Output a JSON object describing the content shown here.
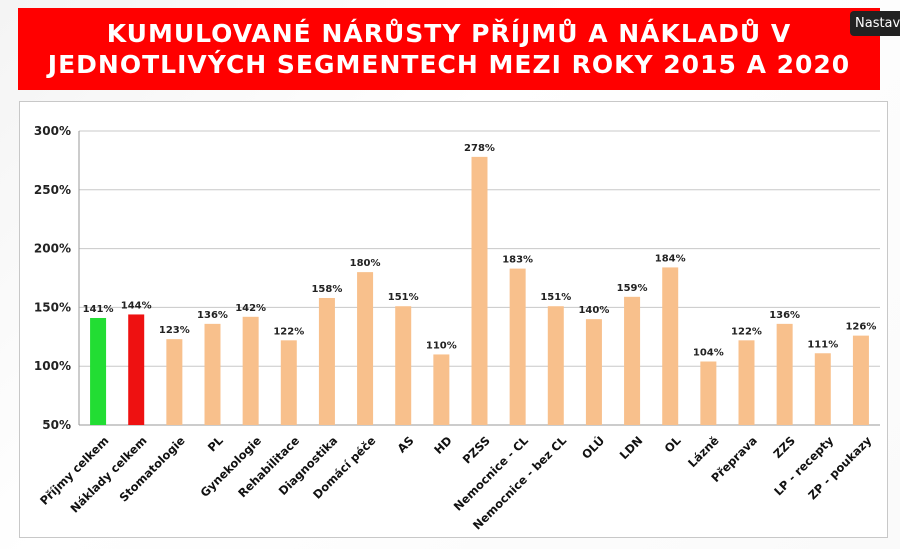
{
  "header": {
    "title_line1": "KUMULOVANÉ NÁRŮSTY PŘÍJMŮ A NÁKLADŮ V",
    "title_line2": "JEDNOTLIVÝCH SEGMENTECH MEZI ROKY 2015 A 2020",
    "corner_button_label": "Nastav"
  },
  "chart_data": {
    "type": "bar",
    "title": "KUMULOVANÉ NÁRŮSTY PŘÍJMŮ A NÁKLADŮ V JEDNOTLIVÝCH SEGMENTECH MEZI ROKY 2015 A 2020",
    "xlabel": "",
    "ylabel": "",
    "ylim": [
      50,
      300
    ],
    "yticks": [
      50,
      100,
      150,
      200,
      250,
      300
    ],
    "ytick_labels": [
      "50%",
      "100%",
      "150%",
      "200%",
      "250%",
      "300%"
    ],
    "grid": true,
    "legend": "none",
    "categories": [
      "Příjmy celkem",
      "Náklady celkem",
      "Stomatologie",
      "PL",
      "Gynekologie",
      "Rehabilitace",
      "Diagnostika",
      "Domácí péče",
      "AS",
      "HD",
      "PZSS",
      "Nemocnice - CL",
      "Nemocnice - bez CL",
      "OLÚ",
      "LDN",
      "OL",
      "Lázně",
      "Přeprava",
      "ZZS",
      "LP - recepty",
      "ZP - poukazy"
    ],
    "values": [
      141,
      144,
      123,
      136,
      142,
      122,
      158,
      180,
      151,
      110,
      278,
      183,
      151,
      140,
      159,
      184,
      104,
      122,
      136,
      111,
      126
    ],
    "value_labels": [
      "141%",
      "144%",
      "123%",
      "136%",
      "142%",
      "122%",
      "158%",
      "180%",
      "151%",
      "110%",
      "278%",
      "183%",
      "151%",
      "140%",
      "159%",
      "184%",
      "104%",
      "122%",
      "136%",
      "111%",
      "126%"
    ],
    "colors": [
      "#22dd33",
      "#ee1111",
      "#f8c08c",
      "#f8c08c",
      "#f8c08c",
      "#f8c08c",
      "#f8c08c",
      "#f8c08c",
      "#f8c08c",
      "#f8c08c",
      "#f8c08c",
      "#f8c08c",
      "#f8c08c",
      "#f8c08c",
      "#f8c08c",
      "#f8c08c",
      "#f8c08c",
      "#f8c08c",
      "#f8c08c",
      "#f8c08c",
      "#f8c08c"
    ]
  }
}
